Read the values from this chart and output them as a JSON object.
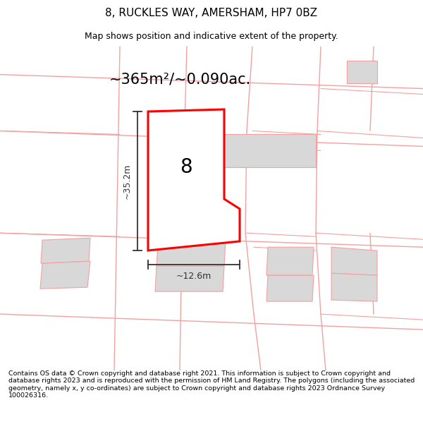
{
  "title": "8, RUCKLES WAY, AMERSHAM, HP7 0BZ",
  "subtitle": "Map shows position and indicative extent of the property.",
  "area_text": "~365m²/~0.090ac.",
  "dim_width": "~12.6m",
  "dim_height": "~35.2m",
  "plot_number": "8",
  "footer": "Contains OS data © Crown copyright and database right 2021. This information is subject to Crown copyright and database rights 2023 and is reproduced with the permission of HM Land Registry. The polygons (including the associated geometry, namely x, y co-ordinates) are subject to Crown copyright and database rights 2023 Ordnance Survey 100026316.",
  "bg_color": "#ffffff",
  "map_bg": "#ffffff",
  "plot_color": "#ff0000",
  "road_color": "#f5a0a0",
  "building_color": "#d8d8d8",
  "dim_color": "#333333",
  "title_color": "#000000",
  "text_color": "#000000",
  "title_fontsize": 11,
  "subtitle_fontsize": 9,
  "area_fontsize": 15,
  "plot_num_fontsize": 20,
  "dim_fontsize": 9,
  "footer_fontsize": 6.8
}
